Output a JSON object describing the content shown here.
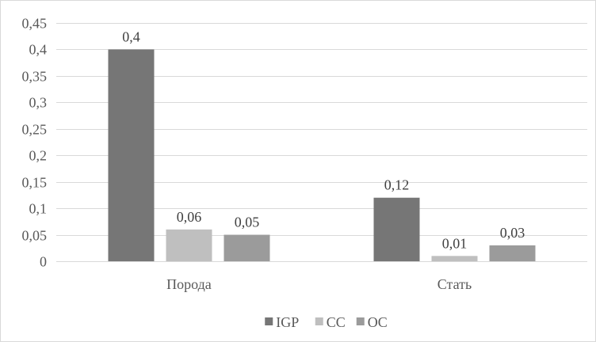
{
  "chart_data": {
    "type": "bar",
    "categories": [
      "Порода",
      "Стать"
    ],
    "series": [
      {
        "name": "IGP",
        "values": [
          0.4,
          0.12
        ],
        "labels": [
          "0,4",
          "0,12"
        ],
        "color": "#767676"
      },
      {
        "name": "CC",
        "values": [
          0.06,
          0.01
        ],
        "labels": [
          "0,06",
          "0,01"
        ],
        "color": "#bfbfbf"
      },
      {
        "name": "OC",
        "values": [
          0.05,
          0.03
        ],
        "labels": [
          "0,05",
          "0,03"
        ],
        "color": "#9b9b9b"
      }
    ],
    "ylim": [
      0,
      0.45
    ],
    "yticks": [
      0,
      0.05,
      0.1,
      0.15,
      0.2,
      0.25,
      0.3,
      0.35,
      0.4,
      0.45
    ],
    "ytick_labels": [
      "0",
      "0,05",
      "0,1",
      "0,15",
      "0,2",
      "0,25",
      "0,3",
      "0,35",
      "0,4",
      "0,45"
    ],
    "grid": true,
    "legend_position": "bottom",
    "gridline_color": "#d9d9d9"
  }
}
